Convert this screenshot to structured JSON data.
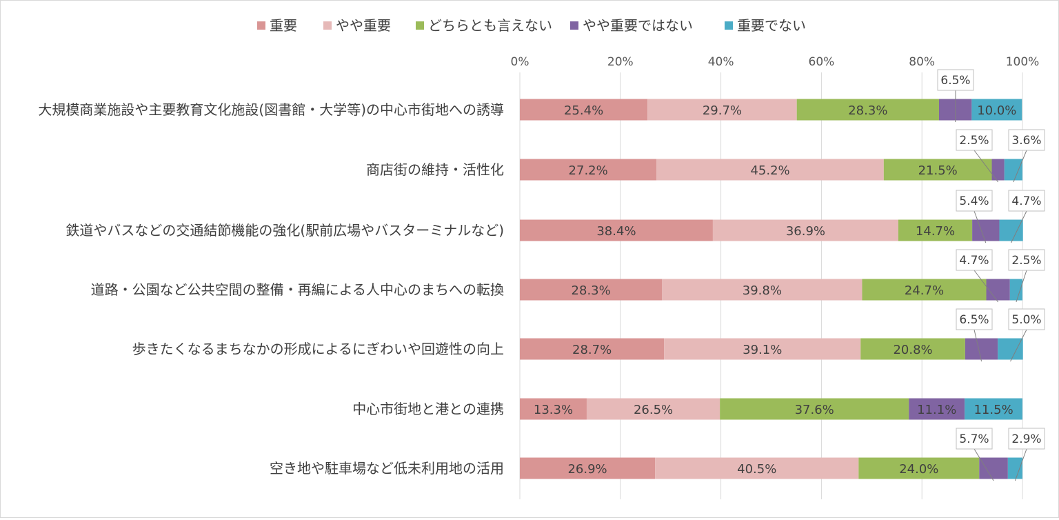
{
  "chart_data": {
    "type": "bar",
    "orientation": "horizontal",
    "stacked": "percent",
    "legend_position": "top",
    "grid": true,
    "xlim": [
      0,
      100
    ],
    "x_ticks": [
      "0%",
      "20%",
      "40%",
      "60%",
      "80%",
      "100%"
    ],
    "categories": [
      "大規模商業施設や主要教育文化施設(図書館・大学等)の中心市街地への誘導",
      "商店街の維持・活性化",
      "鉄道やバスなどの交通結節機能の強化(駅前広場やバスターミナルなど)",
      "道路・公園など公共空間の整備・再編による人中心のまちへの転換",
      "歩きたくなるまちなかの形成によるにぎわいや回遊性の向上",
      "中心市街地と港との連携",
      "空き地や駐車場など低未利用地の活用"
    ],
    "series": [
      {
        "name": "重要",
        "color": "#d99594",
        "values": [
          25.4,
          27.2,
          38.4,
          28.3,
          28.7,
          13.3,
          26.9
        ]
      },
      {
        "name": "やや重要",
        "color": "#e6b9b8",
        "values": [
          29.7,
          45.2,
          36.9,
          39.8,
          39.1,
          26.5,
          40.5
        ]
      },
      {
        "name": "どちらとも言えない",
        "color": "#9bbb59",
        "values": [
          28.3,
          21.5,
          14.7,
          24.7,
          20.8,
          37.6,
          24.0
        ]
      },
      {
        "name": "やや重要ではない",
        "color": "#8064a2",
        "values": [
          6.5,
          2.5,
          5.4,
          4.7,
          6.5,
          11.1,
          5.7
        ]
      },
      {
        "name": "重要でない",
        "color": "#4bacc6",
        "values": [
          10.0,
          3.6,
          4.7,
          2.5,
          5.0,
          11.5,
          2.9
        ]
      }
    ]
  }
}
